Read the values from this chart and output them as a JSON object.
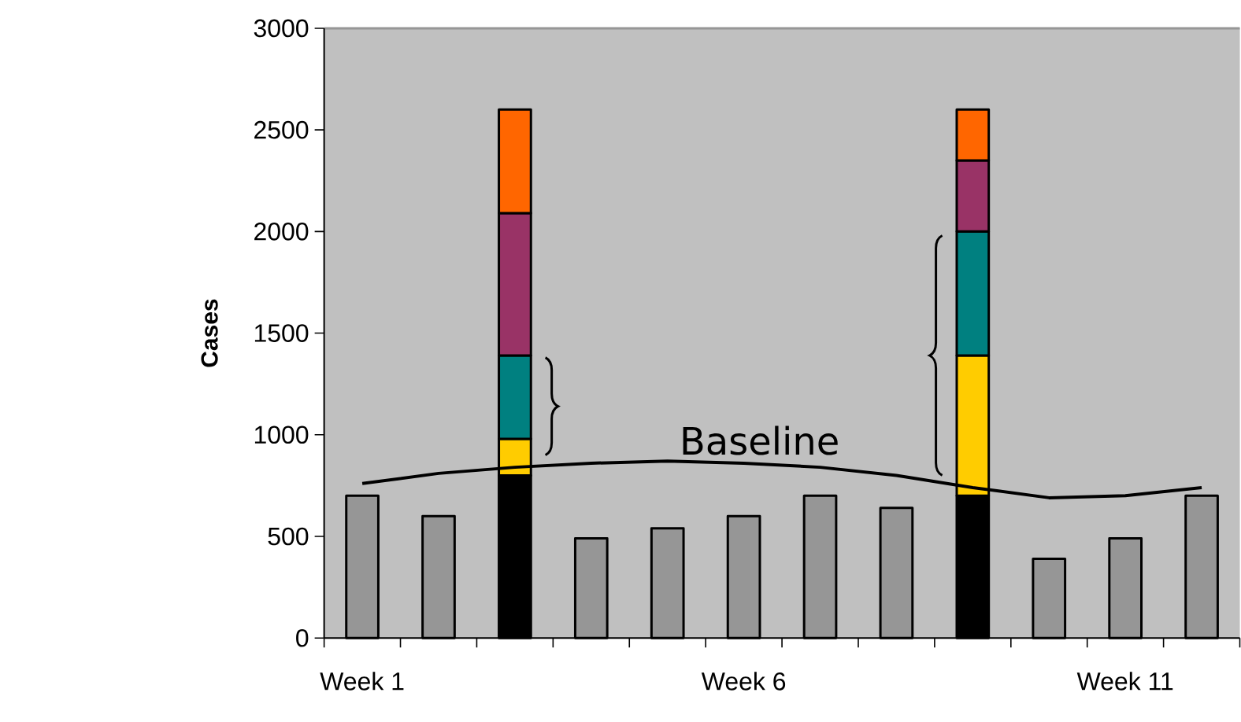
{
  "chart_data": {
    "type": "bar",
    "stacked": true,
    "ylabel": "Cases",
    "categories": [
      "Week 1",
      null,
      null,
      null,
      null,
      "Week 6",
      null,
      null,
      null,
      null,
      "Week 11",
      null
    ],
    "ylim": [
      0,
      3000
    ],
    "yticks": [
      0,
      500,
      1000,
      1500,
      2000,
      2500,
      3000
    ],
    "series": [
      {
        "color": "#969696",
        "values": [
          700,
          600,
          null,
          490,
          540,
          600,
          700,
          640,
          null,
          390,
          490,
          700
        ]
      },
      {
        "color": "#000000",
        "values": [
          null,
          null,
          800,
          null,
          null,
          null,
          null,
          null,
          700,
          null,
          null,
          null
        ]
      },
      {
        "color": "#ffcc00",
        "values": [
          null,
          null,
          180,
          null,
          null,
          null,
          null,
          null,
          690,
          null,
          null,
          null
        ]
      },
      {
        "color": "#008080",
        "values": [
          null,
          null,
          410,
          null,
          null,
          null,
          null,
          null,
          610,
          null,
          null,
          null
        ]
      },
      {
        "color": "#993366",
        "values": [
          null,
          null,
          700,
          null,
          null,
          null,
          null,
          null,
          350,
          null,
          null,
          null
        ]
      },
      {
        "color": "#ff6600",
        "values": [
          null,
          null,
          510,
          null,
          null,
          null,
          null,
          null,
          250,
          null,
          null,
          null
        ]
      },
      {
        "type": "line",
        "name": "Baseline",
        "color": "#000000",
        "values": [
          760,
          810,
          840,
          860,
          870,
          860,
          840,
          800,
          740,
          690,
          700,
          740
        ]
      }
    ]
  }
}
